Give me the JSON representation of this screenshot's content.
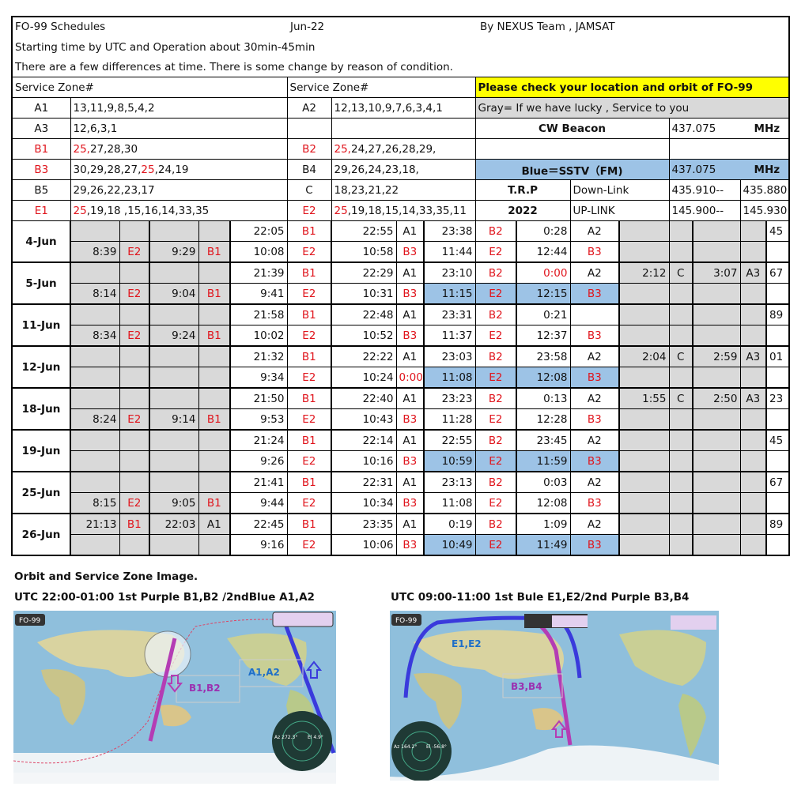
{
  "header": {
    "title": "FO-99  Schedules",
    "month": "Jun-22",
    "author": "By NEXUS Team , JAMSAT",
    "line2": "Starting time by UTC  and  Operation about 30min-45min",
    "line3": "There are a few differences at time. There is some change by reason of condition."
  },
  "zone_header_left": "Service  Zone#",
  "zone_header_right": "Service  Zone#",
  "notice": "Please check your location and orbit of FO-99",
  "gray_note": "Gray= If we have  lucky , Service to you",
  "cw_beacon": {
    "label": "CW Beacon",
    "freq": "437.075",
    "unit": "MHz"
  },
  "sstv": {
    "label": "Blue＝SSTV（FM)",
    "freq": "437.075",
    "unit": "MHz"
  },
  "trp": {
    "label": "T.R.P",
    "year": "2022",
    "down_label": "Down-Link",
    "down_from": "435.910--",
    "down_to": "435.880",
    "up_label": "UP-LINK",
    "up_from": "145.900--",
    "up_to": "145.930"
  },
  "zones": [
    {
      "left": {
        "label": "A1",
        "red": false,
        "parts": [
          [
            "13,11,9,8,5,4,2",
            false
          ]
        ]
      },
      "right": {
        "label": "A2",
        "red": false,
        "parts": [
          [
            "12,13,10,9,7,6,3,4,1",
            false
          ]
        ]
      }
    },
    {
      "left": {
        "label": "A3",
        "red": false,
        "parts": [
          [
            "12,6,3,1",
            false
          ]
        ]
      },
      "right": {
        "label": "",
        "red": false,
        "parts": []
      }
    },
    {
      "left": {
        "label": "B1",
        "red": true,
        "parts": [
          [
            "25,",
            true
          ],
          [
            "27,28,30",
            false
          ]
        ]
      },
      "right": {
        "label": "B2",
        "red": true,
        "parts": [
          [
            "25,",
            true
          ],
          [
            "24,27,26,28,29,",
            false
          ]
        ]
      }
    },
    {
      "left": {
        "label": "B3",
        "red": true,
        "parts": [
          [
            "30,29,28,27,",
            false
          ],
          [
            "25",
            true
          ],
          [
            ",24,19",
            false
          ]
        ]
      },
      "right": {
        "label": "B4",
        "red": false,
        "parts": [
          [
            "29,26,24,23,18,",
            false
          ]
        ]
      }
    },
    {
      "left": {
        "label": "B5",
        "red": false,
        "parts": [
          [
            "29,26,22,23,17",
            false
          ]
        ]
      },
      "right": {
        "label": "C",
        "red": false,
        "parts": [
          [
            "18,23,21,22",
            false
          ]
        ]
      }
    },
    {
      "left": {
        "label": "E1",
        "red": true,
        "parts": [
          [
            "25",
            true
          ],
          [
            ",19,18 ,15,16,14,33,35",
            false
          ]
        ]
      },
      "right": {
        "label": "E2",
        "red": true,
        "parts": [
          [
            "25",
            true
          ],
          [
            ",19,18,15,14,33,35,11",
            false
          ]
        ]
      }
    }
  ],
  "red_values": [
    "B1",
    "B2",
    "B3",
    "E1",
    "E2",
    "0:00"
  ],
  "schedule": [
    {
      "date": "4-Jun",
      "num": "45",
      "blue": false,
      "top": [
        "",
        "",
        "",
        "",
        "22:05",
        "B1",
        "22:55",
        "A1",
        "23:38",
        "B2",
        "0:28",
        "A2",
        "",
        "",
        "",
        ""
      ],
      "bottom": [
        "8:39",
        "E2",
        "9:29",
        "B1",
        "10:08",
        "E2",
        "10:58",
        "B3",
        "11:44",
        "E2",
        "12:44",
        "B3",
        "",
        "",
        "",
        ""
      ]
    },
    {
      "date": "5-Jun",
      "num": "67",
      "blue": true,
      "top": [
        "",
        "",
        "",
        "",
        "21:39",
        "B1",
        "22:29",
        "A1",
        "23:10",
        "B2",
        "0:00",
        "A2",
        "2:12",
        "C",
        "3:07",
        "A3"
      ],
      "bottom": [
        "8:14",
        "E2",
        "9:04",
        "B1",
        "9:41",
        "E2",
        "10:31",
        "B3",
        "11:15",
        "E2",
        "12:15",
        "B3",
        "",
        "",
        "",
        ""
      ]
    },
    {
      "date": "11-Jun",
      "num": "89",
      "blue": false,
      "top": [
        "",
        "",
        "",
        "",
        "21:58",
        "B1",
        "22:48",
        "A1",
        "23:31",
        "B2",
        "0:21",
        "",
        "",
        "",
        "",
        ""
      ],
      "bottom": [
        "8:34",
        "E2",
        "9:24",
        "B1",
        "10:02",
        "E2",
        "10:52",
        "B3",
        "11:37",
        "E2",
        "12:37",
        "B3",
        "",
        "",
        "",
        ""
      ]
    },
    {
      "date": "12-Jun",
      "num": "01",
      "blue": true,
      "top": [
        "",
        "",
        "",
        "",
        "21:32",
        "B1",
        "22:22",
        "A1",
        "23:03",
        "B2",
        "23:58",
        "A2",
        "2:04",
        "C",
        "2:59",
        "A3"
      ],
      "bottom": [
        "",
        "",
        "",
        "",
        "9:34",
        "E2",
        "10:24",
        "0:00",
        "11:08",
        "E2",
        "12:08",
        "B3",
        "",
        "",
        "",
        ""
      ]
    },
    {
      "date": "18-Jun",
      "num": "23",
      "blue": false,
      "top": [
        "",
        "",
        "",
        "",
        "21:50",
        "B1",
        "22:40",
        "A1",
        "23:23",
        "B2",
        "0:13",
        "A2",
        "1:55",
        "C",
        "2:50",
        "A3"
      ],
      "bottom": [
        "8:24",
        "E2",
        "9:14",
        "B1",
        "9:53",
        "E2",
        "10:43",
        "B3",
        "11:28",
        "E2",
        "12:28",
        "B3",
        "",
        "",
        "",
        ""
      ]
    },
    {
      "date": "19-Jun",
      "num": "45",
      "blue": true,
      "top": [
        "",
        "",
        "",
        "",
        "21:24",
        "B1",
        "22:14",
        "A1",
        "22:55",
        "B2",
        "23:45",
        "A2",
        "",
        "",
        "",
        ""
      ],
      "bottom": [
        "",
        "",
        "",
        "",
        "9:26",
        "E2",
        "10:16",
        "B3",
        "10:59",
        "E2",
        "11:59",
        "B3",
        "",
        "",
        "",
        ""
      ]
    },
    {
      "date": "25-Jun",
      "num": "67",
      "blue": false,
      "top": [
        "",
        "",
        "",
        "",
        "21:41",
        "B1",
        "22:31",
        "A1",
        "23:13",
        "B2",
        "0:03",
        "A2",
        "",
        "",
        "",
        ""
      ],
      "bottom": [
        "8:15",
        "E2",
        "9:05",
        "B1",
        "9:44",
        "E2",
        "10:34",
        "B3",
        "11:08",
        "E2",
        "12:08",
        "B3",
        "",
        "",
        "",
        ""
      ]
    },
    {
      "date": "26-Jun",
      "num": "89",
      "blue": true,
      "top": [
        "21:13",
        "B1",
        "22:03",
        "A1",
        "22:45",
        "B1",
        "23:35",
        "A1",
        "0:19",
        "B2",
        "1:09",
        "A2",
        "",
        "",
        "",
        ""
      ],
      "bottom": [
        "",
        "",
        "",
        "",
        "9:16",
        "E2",
        "10:06",
        "B3",
        "10:49",
        "E2",
        "11:49",
        "B3",
        "",
        "",
        "",
        ""
      ]
    }
  ],
  "orbit": {
    "title": "Orbit and Service Zone Image.",
    "left_caption": "UTC 22:00-01:00  1st Purple  B1,B2 /2ndBlue A1,A2",
    "right_caption": "UTC 09:00-11:00        1st Bule E1,E2/2nd Purple  B3,B4",
    "map1": {
      "badge": "FO-99",
      "label_purple": "B1,B2",
      "label_blue": "A1,A2",
      "az": "Az 272.3°",
      "el": "El 4.9°"
    },
    "map2": {
      "badge": "FO-99",
      "label_purple": "B3,B4",
      "label_blue": "E1,E2",
      "az": "Az 164.2°",
      "el": "El -56.8°"
    },
    "colors": {
      "purple": "#b43cb4",
      "blue": "#3a3adc",
      "sea": "#8fbfdc",
      "land": "#d9d3a0"
    }
  }
}
